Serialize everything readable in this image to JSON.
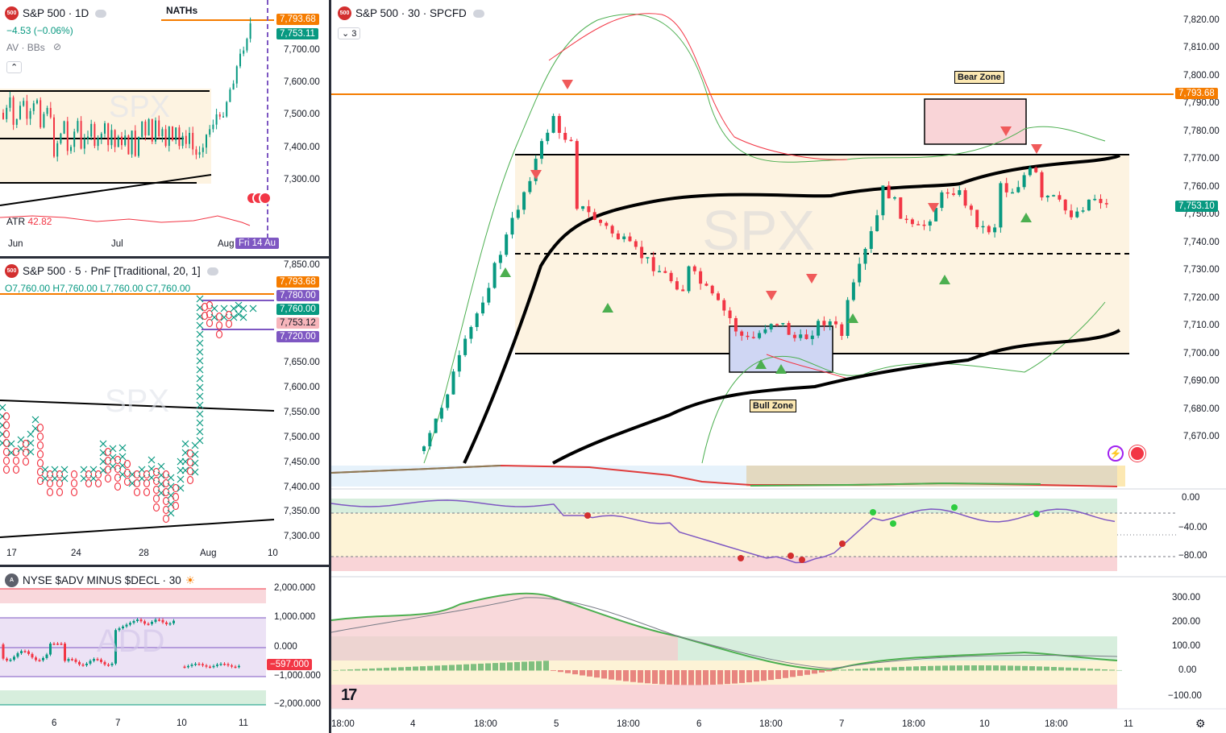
{
  "colors": {
    "up": "#089981",
    "down": "#f23645",
    "orange": "#f57c00",
    "purple": "#7e57c2",
    "black": "#000000"
  },
  "p1": {
    "symbol": "500",
    "title": "S&P 500 · 1D",
    "change": "−4.53 (−0.06%)",
    "indicator": "AV · BBs",
    "label": "NATHs",
    "atr_label": "ATR",
    "atr_value": "42.82",
    "watermark": "SPX",
    "prices": [
      "7,700.00",
      "7,600.00",
      "7,500.00",
      "7,400.00",
      "7,300.00"
    ],
    "tag_ath": "7,793.68",
    "tag_last": "7,753.11",
    "x_ticks": [
      "Jun",
      "Jul",
      "Aug"
    ],
    "date_tag": "Fri 14 Au"
  },
  "p2": {
    "symbol": "500",
    "title": "S&P 500 · 5 · PnF [Traditional, 20, 1]",
    "ohlc": "O7,760.00 H7,760.00 L7,760.00 C7,760.00",
    "watermark": "SPX",
    "prices": [
      "7,850.00",
      "7,650.00",
      "7,600.00",
      "7,550.00",
      "7,500.00",
      "7,450.00",
      "7,400.00",
      "7,350.00",
      "7,300.00"
    ],
    "tags": [
      "7,793.68",
      "7,780.00",
      "7,760.00",
      "7,753.12",
      "7,720.00"
    ],
    "x_ticks": [
      "17",
      "24",
      "28",
      "Aug",
      "10"
    ]
  },
  "p3": {
    "symbol": "A",
    "title": "NYSE $ADV MINUS $DECL · 30",
    "watermark": "ADD",
    "prices": [
      "2,000.000",
      "1,000.000",
      "0.000",
      "−1,000.000",
      "−2,000.000"
    ],
    "tag": "−597.000",
    "x_ticks": [
      "6",
      "7",
      "10",
      "11"
    ]
  },
  "main": {
    "symbol": "500",
    "title": "S&P 500 · 30 · SPCFD",
    "indicator_count": "3",
    "watermark": "SPX",
    "bear_zone": "Bear Zone",
    "bull_zone": "Bull Zone",
    "prices": [
      "7,820.00",
      "7,810.00",
      "7,800.00",
      "7,790.00",
      "7,780.00",
      "7,770.00",
      "7,760.00",
      "7,750.00",
      "7,740.00",
      "7,730.00",
      "7,720.00",
      "7,710.00",
      "7,700.00",
      "7,690.00",
      "7,680.00",
      "7,670.00"
    ],
    "tag_ath": "7,793.68",
    "tag_last": "7,753.10",
    "osc_prices": [
      "0.00",
      "−40.00",
      "−80.00"
    ],
    "macd_prices": [
      "300.00",
      "200.00",
      "100.00",
      "0.00",
      "−100.00"
    ],
    "x_ticks": [
      "18:00",
      "4",
      "18:00",
      "5",
      "18:00",
      "6",
      "18:00",
      "7",
      "18:00",
      "10",
      "18:00",
      "11"
    ]
  }
}
